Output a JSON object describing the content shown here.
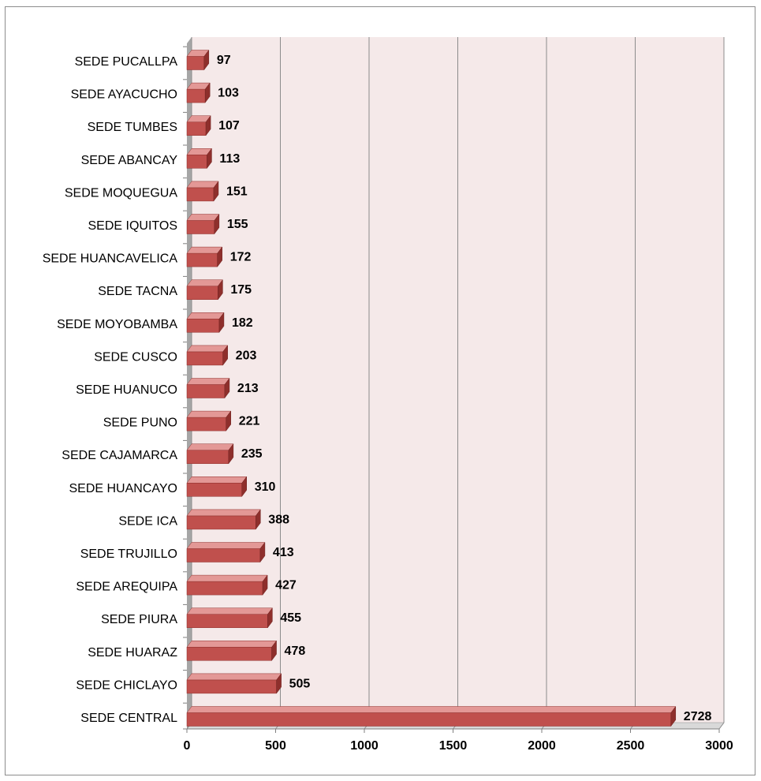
{
  "chart_data": {
    "type": "bar",
    "orientation": "horizontal",
    "style": "3d",
    "categories": [
      "SEDE PUCALLPA",
      "SEDE AYACUCHO",
      "SEDE TUMBES",
      "SEDE ABANCAY",
      "SEDE MOQUEGUA",
      "SEDE IQUITOS",
      "SEDE HUANCAVELICA",
      "SEDE TACNA",
      "SEDE MOYOBAMBA",
      "SEDE CUSCO",
      "SEDE HUANUCO",
      "SEDE PUNO",
      "SEDE CAJAMARCA",
      "SEDE HUANCAYO",
      "SEDE ICA",
      "SEDE TRUJILLO",
      "SEDE AREQUIPA",
      "SEDE PIURA",
      "SEDE HUARAZ",
      "SEDE CHICLAYO",
      "SEDE CENTRAL"
    ],
    "values": [
      97,
      103,
      107,
      113,
      151,
      155,
      172,
      175,
      182,
      203,
      213,
      221,
      235,
      310,
      388,
      413,
      427,
      455,
      478,
      505,
      2728
    ],
    "title": "",
    "xlabel": "",
    "ylabel": "",
    "xlim": [
      0,
      3000
    ],
    "xticks": [
      0,
      500,
      1000,
      1500,
      2000,
      2500,
      3000
    ],
    "grid": "vertical",
    "legend": "none",
    "colors": {
      "bar_front": "#c0504d",
      "bar_top": "#e39896",
      "bar_side": "#8e2f2c",
      "plot_back": "#f5e9e9",
      "wall": "#a6a6a6",
      "grid": "#8c8c8c"
    }
  }
}
